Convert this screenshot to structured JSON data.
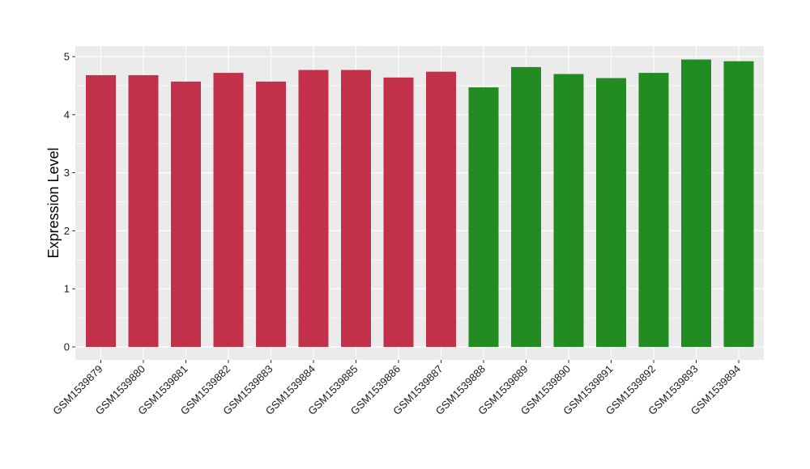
{
  "chart_data": {
    "type": "bar",
    "title": "",
    "xlabel": "",
    "ylabel": "Expression Level",
    "ylim": [
      0,
      5
    ],
    "y_ticks": [
      0,
      1,
      2,
      3,
      4,
      5
    ],
    "grid": true,
    "categories": [
      "GSM1539879",
      "GSM1539880",
      "GSM1539881",
      "GSM1539882",
      "GSM1539883",
      "GSM1539884",
      "GSM1539885",
      "GSM1539886",
      "GSM1539887",
      "GSM1539888",
      "GSM1539889",
      "GSM1539890",
      "GSM1539891",
      "GSM1539892",
      "GSM1539893",
      "GSM1539894"
    ],
    "values": [
      4.68,
      4.68,
      4.57,
      4.72,
      4.57,
      4.77,
      4.77,
      4.64,
      4.74,
      4.47,
      4.82,
      4.7,
      4.63,
      4.72,
      4.95,
      4.92
    ],
    "groups": [
      "a",
      "a",
      "a",
      "a",
      "a",
      "a",
      "a",
      "a",
      "a",
      "b",
      "b",
      "b",
      "b",
      "b",
      "b",
      "b"
    ],
    "colors": {
      "a": "#c3304a",
      "b": "#228b22"
    },
    "panel_background": "#ebebeb",
    "gridline_color": "#ffffff"
  }
}
